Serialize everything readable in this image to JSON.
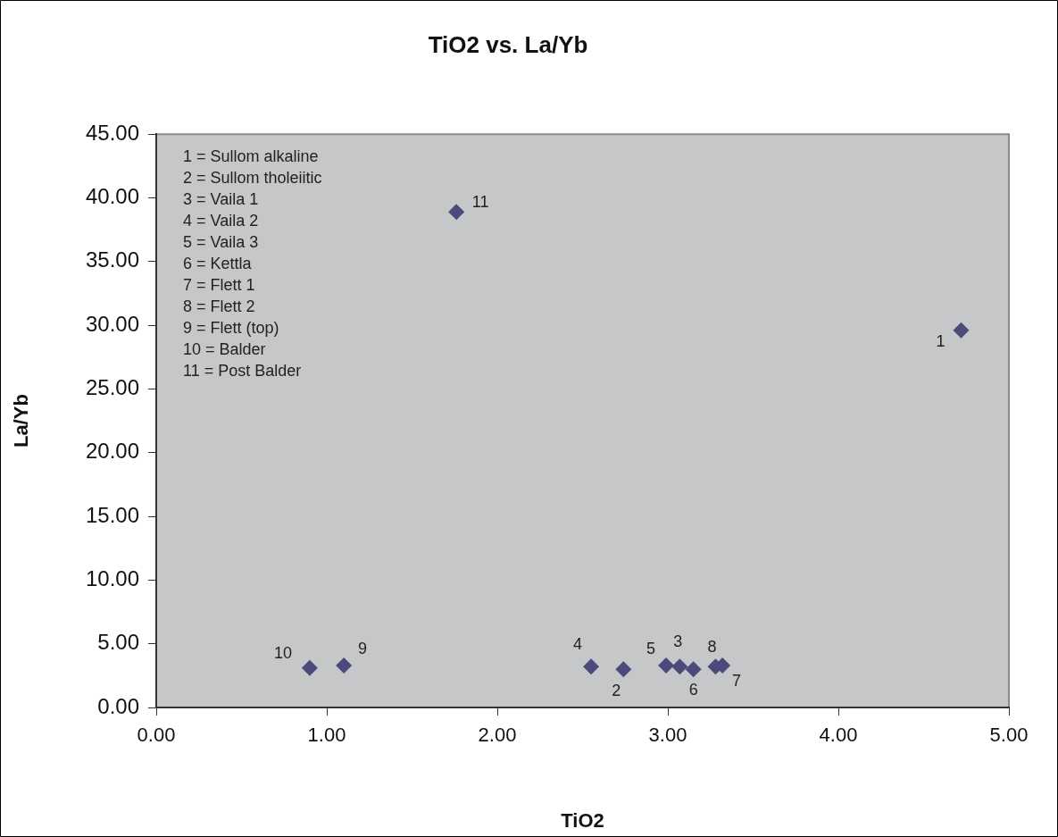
{
  "chart_data": {
    "type": "scatter",
    "title": "TiO2 vs. La/Yb",
    "xlabel": "TiO2",
    "ylabel": "La/Yb",
    "x": [
      4.72,
      2.74,
      3.07,
      2.55,
      2.99,
      3.15,
      3.32,
      3.28,
      1.1,
      0.9,
      1.76
    ],
    "series": [
      {
        "color": "#4b4a7a",
        "values": [
          29.6,
          3.0,
          3.2,
          3.2,
          3.3,
          3.0,
          3.3,
          3.2,
          3.3,
          3.1,
          38.9
        ]
      }
    ],
    "marker": "diamond",
    "legend": false,
    "xlim": [
      0,
      5
    ],
    "xticks": [
      {
        "value": 0,
        "label": "0.00"
      },
      {
        "value": 1,
        "label": "1.00"
      },
      {
        "value": 2,
        "label": "2.00"
      },
      {
        "value": 3,
        "label": "3.00"
      },
      {
        "value": 4,
        "label": "4.00"
      },
      {
        "value": 5,
        "label": "5.00"
      }
    ],
    "ylim": [
      0,
      45
    ],
    "yticks": [
      {
        "value": 0,
        "label": "0.00"
      },
      {
        "value": 5,
        "label": "5.00"
      },
      {
        "value": 10,
        "label": "10.00"
      },
      {
        "value": 15,
        "label": "15.00"
      },
      {
        "value": 20,
        "label": "20.00"
      },
      {
        "value": 25,
        "label": "25.00"
      },
      {
        "value": 30,
        "label": "30.00"
      },
      {
        "value": 35,
        "label": "35.00"
      },
      {
        "value": 40,
        "label": "40.00"
      },
      {
        "value": 45,
        "label": "45.00"
      }
    ],
    "annotations": [
      "1 = Sullom alkaline",
      "2 = Sullom tholeiitic",
      "3 = Vaila 1",
      "4 = Vaila 2",
      "5 = Vaila 3",
      "6 = Kettla",
      "7 = Flett 1",
      "8 = Flett 2",
      "9 = Flett (top)",
      "10 = Balder",
      "11 = Post Balder",
      {
        "text": "1",
        "x": 4.72,
        "y": 29.6
      },
      {
        "text": "2",
        "x": 2.74,
        "y": 3.0
      },
      {
        "text": "3",
        "x": 3.07,
        "y": 3.2
      },
      {
        "text": "4",
        "x": 2.55,
        "y": 3.2
      },
      {
        "text": "5",
        "x": 2.99,
        "y": 3.3
      },
      {
        "text": "6",
        "x": 3.15,
        "y": 3.0
      },
      {
        "text": "7",
        "x": 3.32,
        "y": 3.3
      },
      {
        "text": "8",
        "x": 3.28,
        "y": 3.2
      },
      {
        "text": "9",
        "x": 1.1,
        "y": 3.3
      },
      {
        "text": "10",
        "x": 0.9,
        "y": 3.1
      },
      {
        "text": "11",
        "x": 1.76,
        "y": 38.9
      }
    ]
  }
}
